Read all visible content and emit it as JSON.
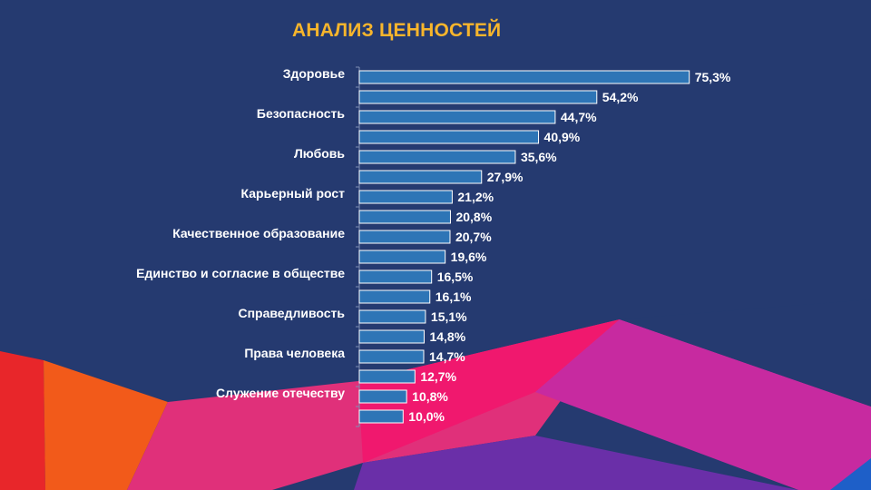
{
  "colors": {
    "background": "#253a70",
    "bar": "#2e75b6",
    "bar_border": "#ffffff",
    "title": "#f7b52c"
  },
  "chart_data": {
    "type": "bar",
    "orientation": "horizontal",
    "title": "АНАЛИЗ ЦЕННОСТЕЙ",
    "categories": [
      "Здоровье",
      "",
      "Безопасность",
      "",
      "Любовь",
      "",
      "Карьерный рост",
      "",
      "Качественное образование",
      "",
      "Единство и согласие в обществе",
      "",
      "Справедливость",
      "",
      "Права человека",
      "",
      "Служение отечеству",
      ""
    ],
    "values": [
      75.3,
      54.2,
      44.7,
      40.9,
      35.6,
      27.9,
      21.2,
      20.8,
      20.7,
      19.6,
      16.5,
      16.1,
      15.1,
      14.8,
      14.7,
      12.7,
      10.8,
      10.0
    ],
    "value_labels": [
      "75,3%",
      "54,2%",
      "44,7%",
      "40,9%",
      "35,6%",
      "27,9%",
      "21,2%",
      "20,8%",
      "20,7%",
      "19,6%",
      "16,5%",
      "16,1%",
      "15,1%",
      "14,8%",
      "14,7%",
      "12,7%",
      "10,8%",
      "10,0%"
    ],
    "xlim": [
      0,
      80
    ],
    "xlabel": "",
    "ylabel": "",
    "grid": false
  }
}
